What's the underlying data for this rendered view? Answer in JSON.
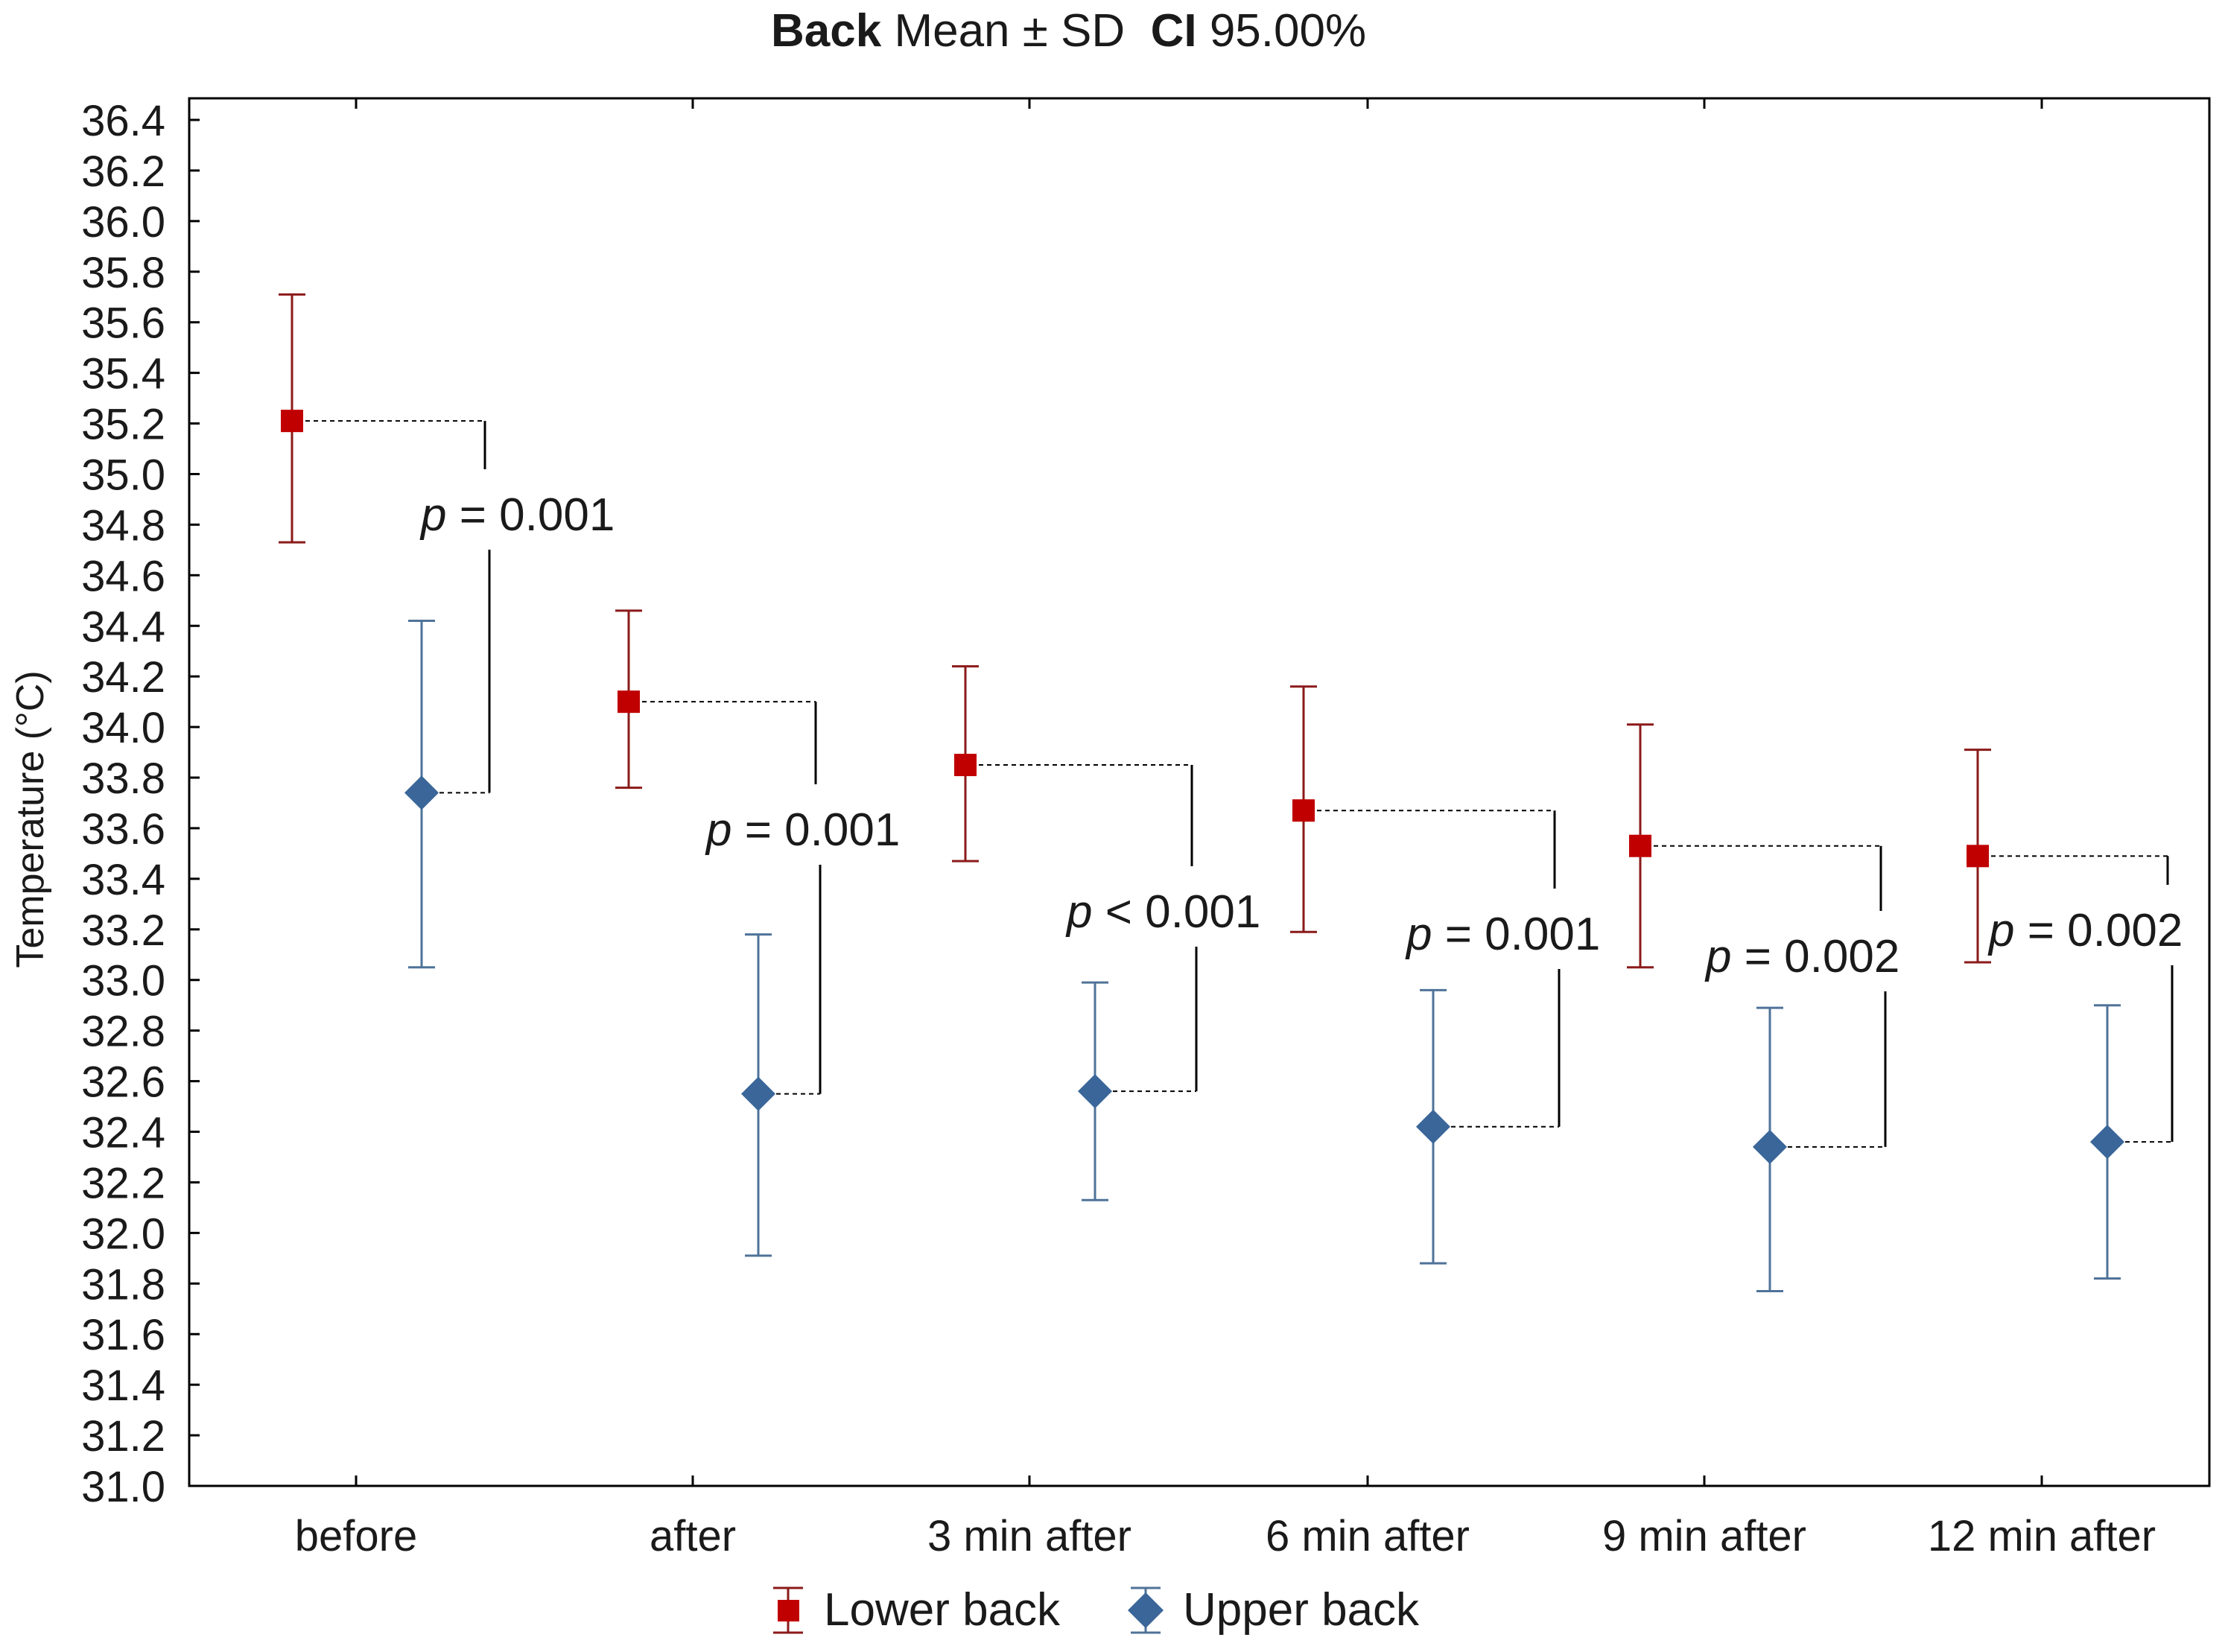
{
  "chart_data": {
    "type": "scatter",
    "title": {
      "bold_1": "Back",
      "regular_1": " Mean ± SD  ",
      "bold_2": "CI",
      "regular_2": " 95.00%"
    },
    "xlabel": "",
    "ylabel": "Temperature (°C)",
    "ylim": [
      31.0,
      36.4
    ],
    "yticks": [
      "31.0",
      "31.2",
      "31.4",
      "31.6",
      "31.8",
      "32.0",
      "32.2",
      "32.4",
      "32.6",
      "32.8",
      "33.0",
      "33.2",
      "33.4",
      "33.6",
      "33.8",
      "34.0",
      "34.2",
      "34.4",
      "34.6",
      "34.8",
      "35.0",
      "35.2",
      "35.4",
      "35.6",
      "35.8",
      "36.0",
      "36.2",
      "36.4"
    ],
    "categories": [
      "before",
      "after",
      "3 min after",
      "6 min after",
      "9 min after",
      "12 min after"
    ],
    "series": [
      {
        "name": "Lower back",
        "color": "#c00000",
        "marker": "square",
        "errorbar_color": "#8b1a1a",
        "mean": [
          35.21,
          34.1,
          33.85,
          33.67,
          33.53,
          33.49
        ],
        "upper": [
          35.71,
          34.46,
          34.24,
          34.16,
          34.01,
          33.91
        ],
        "lower": [
          34.73,
          33.76,
          33.47,
          33.19,
          33.05,
          33.07
        ]
      },
      {
        "name": "Upper back",
        "color": "#3a6699",
        "marker": "diamond",
        "errorbar_color": "#4f7399",
        "mean": [
          33.74,
          32.55,
          32.56,
          32.42,
          32.34,
          32.36
        ],
        "upper": [
          34.42,
          33.18,
          32.99,
          32.96,
          32.89,
          32.9
        ],
        "lower": [
          33.05,
          31.91,
          32.13,
          31.88,
          31.77,
          31.82
        ]
      }
    ],
    "annotations": [
      {
        "p_symbol": "p",
        "rest": " = 0.001"
      },
      {
        "p_symbol": "p",
        "rest": " = 0.001"
      },
      {
        "p_symbol": "p",
        "rest": " < 0.001"
      },
      {
        "p_symbol": "p",
        "rest": " = 0.001"
      },
      {
        "p_symbol": "p",
        "rest": " = 0.002"
      },
      {
        "p_symbol": "p",
        "rest": " = 0.002"
      }
    ],
    "legend": {
      "position": "bottom-center",
      "entries": [
        "Lower back",
        "Upper back"
      ]
    },
    "grid": false
  }
}
